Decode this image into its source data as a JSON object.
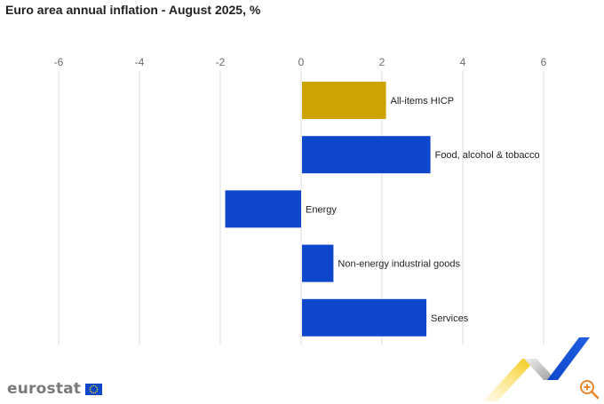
{
  "title": "Euro area annual inflation - August 2025, %",
  "brand": "eurostat",
  "colors": {
    "highlight": "#cca300",
    "bar": "#0e47cb",
    "grid": "#dddddd",
    "axis_text": "#6b6b6b",
    "brand_grey": "#7a7a7a",
    "zoom": "#e8862e"
  },
  "icons": {
    "flag": "eu-flag-icon",
    "zoom": "zoom-in-icon",
    "decoration": "eurostat-ribbon-icon"
  },
  "chart_data": {
    "type": "bar",
    "orientation": "horizontal",
    "title": "Euro area annual inflation - August 2025, %",
    "xlabel": "",
    "ylabel": "",
    "xlim": [
      -6.5,
      7
    ],
    "xticks": [
      -6,
      -4,
      -2,
      0,
      2,
      4,
      6
    ],
    "tick_labels": [
      "-6",
      "-4",
      "-2",
      "0",
      "2",
      "4",
      "6"
    ],
    "grid": true,
    "axis_position": "top",
    "categories": [
      "All-items HICP",
      "Food, alcohol & tobacco",
      "Energy",
      "Non-energy industrial goods",
      "Services"
    ],
    "values": [
      2.1,
      3.2,
      -1.9,
      0.8,
      3.1
    ],
    "bar_colors": [
      "#cca300",
      "#0e47cb",
      "#0e47cb",
      "#0e47cb",
      "#0e47cb"
    ]
  }
}
